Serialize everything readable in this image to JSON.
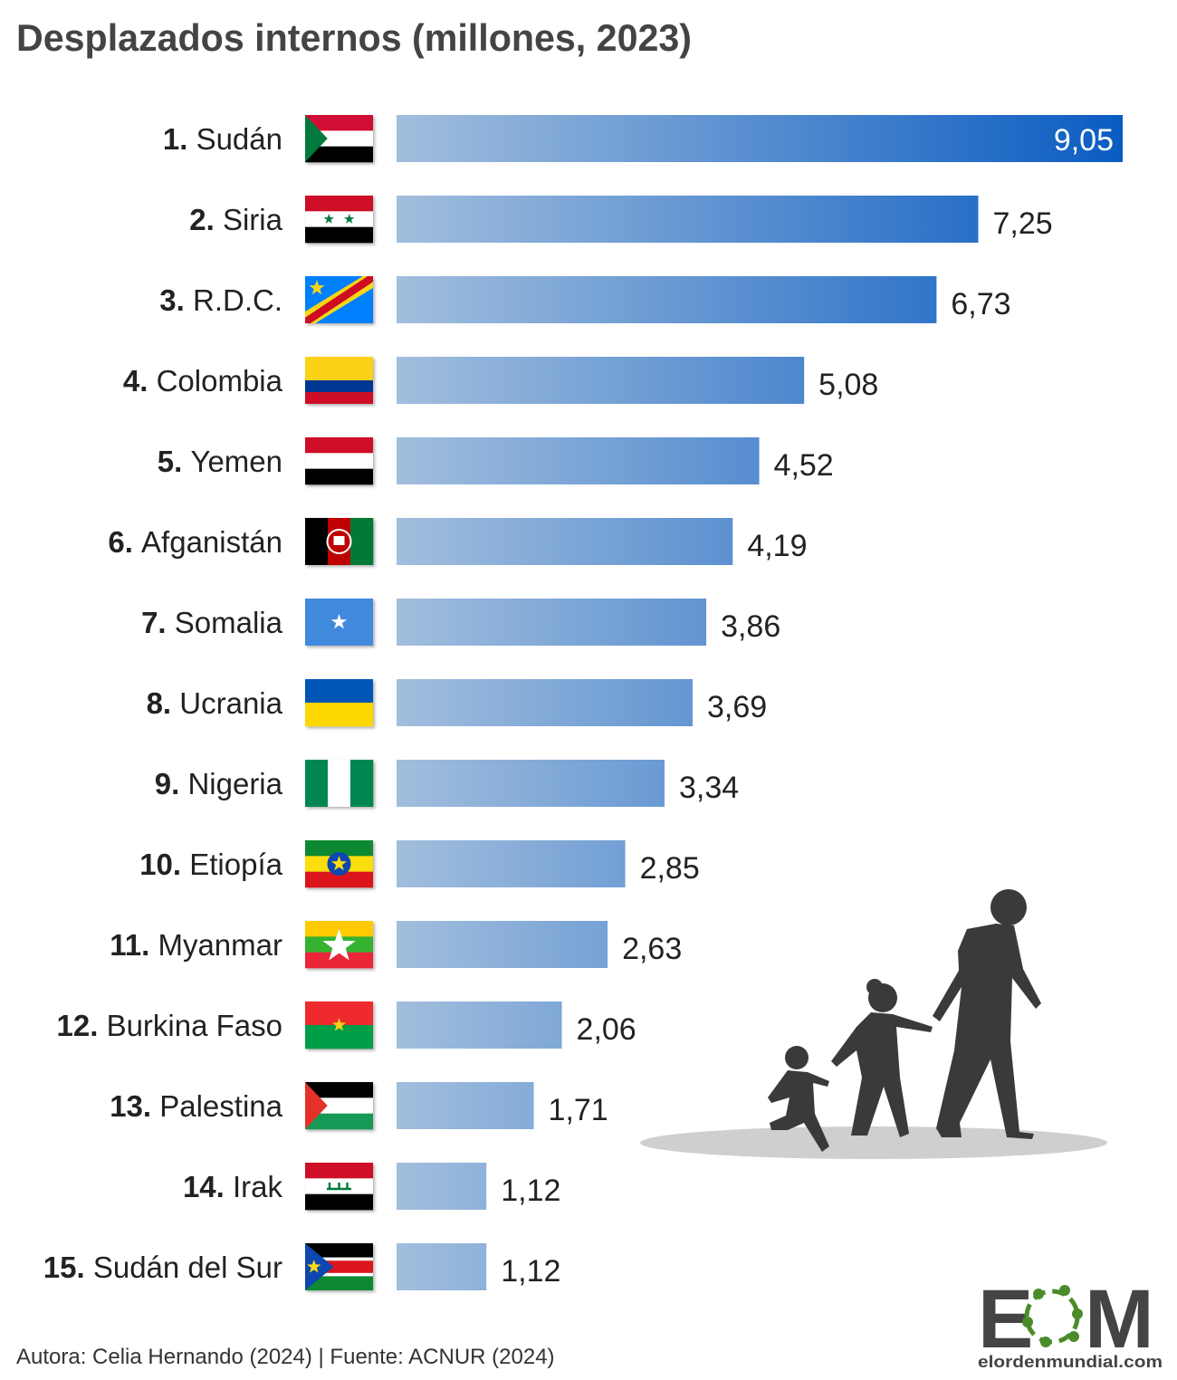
{
  "title": "Desplazados internos (millones, 2023)",
  "footer": "Autora: Celia Hernando (2024) | Fuente: ACNUR (2024)",
  "logo": {
    "text": "EOM",
    "url_text": "elordenmundial.com"
  },
  "colors": {
    "bar_start": "#a2bedd",
    "bar_end": "#0a5cc2",
    "text": "#222222",
    "title": "#444444",
    "silhouette": "#3a3a3a"
  },
  "chart_data": {
    "type": "bar",
    "orientation": "horizontal",
    "title": "Desplazados internos (millones, 2023)",
    "xlabel": "",
    "ylabel": "",
    "xlim": [
      0,
      9.05
    ],
    "grid": false,
    "categories": [
      {
        "rank": "1.",
        "name": "Sudán",
        "flag": "sudan-flag-icon"
      },
      {
        "rank": "2.",
        "name": "Siria",
        "flag": "syria-flag-icon"
      },
      {
        "rank": "3.",
        "name": "R.D.C.",
        "flag": "drc-flag-icon"
      },
      {
        "rank": "4.",
        "name": "Colombia",
        "flag": "colombia-flag-icon"
      },
      {
        "rank": "5.",
        "name": "Yemen",
        "flag": "yemen-flag-icon"
      },
      {
        "rank": "6.",
        "name": "Afganistán",
        "flag": "afghanistan-flag-icon"
      },
      {
        "rank": "7.",
        "name": "Somalia",
        "flag": "somalia-flag-icon"
      },
      {
        "rank": "8.",
        "name": "Ucrania",
        "flag": "ukraine-flag-icon"
      },
      {
        "rank": "9.",
        "name": "Nigeria",
        "flag": "nigeria-flag-icon"
      },
      {
        "rank": "10.",
        "name": "Etiopía",
        "flag": "ethiopia-flag-icon"
      },
      {
        "rank": "11.",
        "name": "Myanmar",
        "flag": "myanmar-flag-icon"
      },
      {
        "rank": "12.",
        "name": "Burkina Faso",
        "flag": "burkina-faso-flag-icon"
      },
      {
        "rank": "13.",
        "name": "Palestina",
        "flag": "palestine-flag-icon"
      },
      {
        "rank": "14.",
        "name": "Irak",
        "flag": "iraq-flag-icon"
      },
      {
        "rank": "15.",
        "name": "Sudán del Sur",
        "flag": "south-sudan-flag-icon"
      }
    ],
    "values": [
      9.05,
      7.25,
      6.73,
      5.08,
      4.52,
      4.19,
      3.86,
      3.69,
      3.34,
      2.85,
      2.63,
      2.06,
      1.71,
      1.12,
      1.12
    ],
    "value_labels": [
      "9,05",
      "7,25",
      "6,73",
      "5,08",
      "4,52",
      "4,19",
      "3,86",
      "3,69",
      "3,34",
      "2,85",
      "2,63",
      "2,06",
      "1,71",
      "1,12",
      "1,12"
    ]
  }
}
